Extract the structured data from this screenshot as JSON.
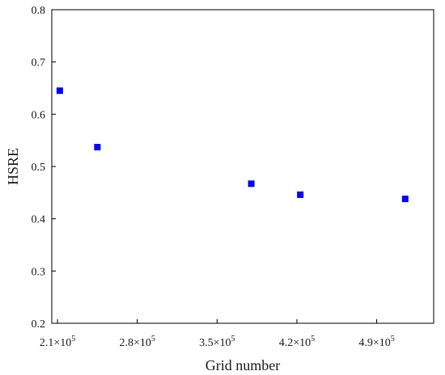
{
  "chart_data": {
    "type": "scatter",
    "title": "",
    "xlabel": "Grid number",
    "ylabel": "HSRE",
    "xlim": [
      205000,
      540000
    ],
    "ylim": [
      0.2,
      0.8
    ],
    "x_ticks": [
      {
        "value": 210000,
        "mantissa": "2.1×10",
        "exp": "5"
      },
      {
        "value": 280000,
        "mantissa": "2.8×10",
        "exp": "5"
      },
      {
        "value": 350000,
        "mantissa": "3.5×10",
        "exp": "5"
      },
      {
        "value": 420000,
        "mantissa": "4.2×10",
        "exp": "5"
      },
      {
        "value": 490000,
        "mantissa": "4.9×10",
        "exp": "5"
      }
    ],
    "y_ticks": [
      {
        "value": 0.2,
        "label": "0.2"
      },
      {
        "value": 0.3,
        "label": "0.3"
      },
      {
        "value": 0.4,
        "label": "0.4"
      },
      {
        "value": 0.5,
        "label": "0.5"
      },
      {
        "value": 0.6,
        "label": "0.6"
      },
      {
        "value": 0.7,
        "label": "0.7"
      },
      {
        "value": 0.8,
        "label": "0.8"
      }
    ],
    "grid": false,
    "legend": "none",
    "marker_color": "#0000ff",
    "marker_shape": "square",
    "series": [
      {
        "x": [
          212000,
          245000,
          380000,
          423000,
          515000
        ],
        "y": [
          0.645,
          0.537,
          0.467,
          0.446,
          0.438
        ]
      }
    ]
  }
}
